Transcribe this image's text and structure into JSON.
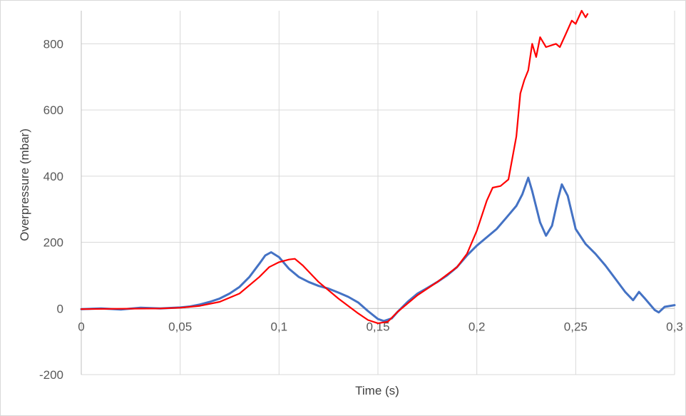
{
  "chart_data": {
    "type": "line",
    "title": "",
    "xlabel": "Time (s)",
    "ylabel": "Overpressure (mbar)",
    "xlim": [
      0,
      0.3
    ],
    "ylim": [
      -200,
      900
    ],
    "x_ticks": [
      {
        "value": 0,
        "label": "0"
      },
      {
        "value": 0.05,
        "label": "0,05"
      },
      {
        "value": 0.1,
        "label": "0,1"
      },
      {
        "value": 0.15,
        "label": "0,15"
      },
      {
        "value": 0.2,
        "label": "0,2"
      },
      {
        "value": 0.25,
        "label": "0,25"
      },
      {
        "value": 0.3,
        "label": "0,3"
      }
    ],
    "y_ticks": [
      {
        "value": -200,
        "label": "-200"
      },
      {
        "value": 0,
        "label": "0"
      },
      {
        "value": 200,
        "label": "200"
      },
      {
        "value": 400,
        "label": "400"
      },
      {
        "value": 600,
        "label": "600"
      },
      {
        "value": 800,
        "label": "800"
      }
    ],
    "grid": true,
    "legend": "none",
    "series": [
      {
        "color": "#4472c4",
        "x": [
          0,
          0.01,
          0.02,
          0.03,
          0.04,
          0.05,
          0.055,
          0.06,
          0.065,
          0.07,
          0.075,
          0.08,
          0.085,
          0.09,
          0.093,
          0.096,
          0.1,
          0.105,
          0.11,
          0.115,
          0.12,
          0.125,
          0.13,
          0.135,
          0.14,
          0.145,
          0.15,
          0.153,
          0.157,
          0.16,
          0.165,
          0.17,
          0.175,
          0.18,
          0.185,
          0.19,
          0.195,
          0.2,
          0.205,
          0.21,
          0.215,
          0.22,
          0.223,
          0.226,
          0.228,
          0.232,
          0.235,
          0.238,
          0.241,
          0.243,
          0.246,
          0.25,
          0.255,
          0.26,
          0.265,
          0.27,
          0.275,
          0.279,
          0.282,
          0.285,
          0.29,
          0.292,
          0.295,
          0.3
        ],
        "y": [
          -2,
          0,
          -3,
          2,
          0,
          3,
          6,
          12,
          20,
          30,
          45,
          65,
          95,
          135,
          160,
          170,
          155,
          120,
          95,
          80,
          68,
          60,
          48,
          35,
          18,
          -8,
          -32,
          -38,
          -30,
          -10,
          20,
          45,
          62,
          80,
          100,
          125,
          160,
          190,
          215,
          240,
          275,
          310,
          345,
          395,
          355,
          260,
          220,
          250,
          330,
          375,
          340,
          240,
          195,
          165,
          130,
          90,
          50,
          25,
          50,
          30,
          -5,
          -12,
          5,
          10
        ]
      },
      {
        "color": "#ff0000",
        "x": [
          0,
          0.02,
          0.04,
          0.05,
          0.06,
          0.07,
          0.08,
          0.09,
          0.095,
          0.1,
          0.105,
          0.108,
          0.112,
          0.12,
          0.13,
          0.14,
          0.145,
          0.15,
          0.155,
          0.16,
          0.17,
          0.18,
          0.19,
          0.195,
          0.2,
          0.205,
          0.208,
          0.212,
          0.216,
          0.22,
          0.222,
          0.224,
          0.226,
          0.228,
          0.23,
          0.232,
          0.235,
          0.24,
          0.242,
          0.245,
          0.248,
          0.25,
          0.253,
          0.255,
          0.256
        ],
        "y": [
          -2,
          -1,
          0,
          2,
          8,
          20,
          45,
          95,
          125,
          140,
          148,
          150,
          130,
          80,
          30,
          -15,
          -35,
          -45,
          -40,
          -10,
          40,
          80,
          125,
          165,
          235,
          325,
          365,
          370,
          390,
          520,
          650,
          690,
          720,
          800,
          760,
          820,
          790,
          800,
          790,
          830,
          870,
          860,
          900,
          880,
          890
        ]
      }
    ]
  }
}
